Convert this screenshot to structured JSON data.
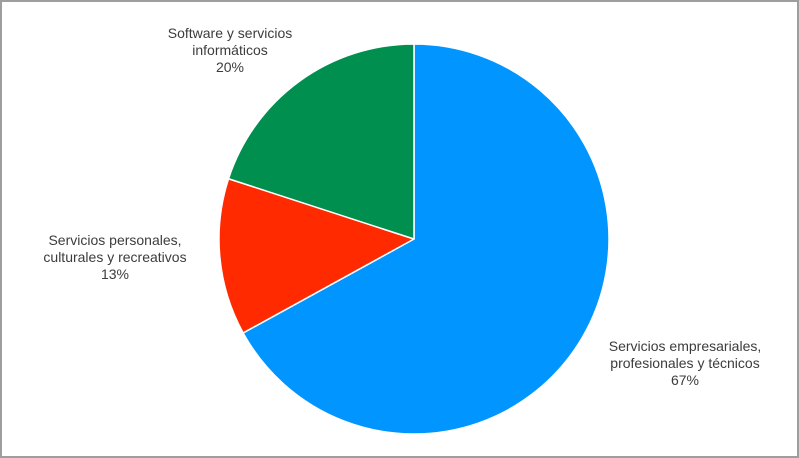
{
  "chart_data": {
    "type": "pie",
    "title": "",
    "start_angle_deg": 0,
    "direction": "clockwise",
    "legend": "none",
    "slices": [
      {
        "label_lines": [
          "Servicios empresariales,",
          "profesionales y técnicos"
        ],
        "value": 67,
        "percent_label": "67%",
        "color": "#0095ff"
      },
      {
        "label_lines": [
          "Servicios personales,",
          "culturales y recreativos"
        ],
        "value": 13,
        "percent_label": "13%",
        "color": "#ff2a00"
      },
      {
        "label_lines": [
          "Software y servicios",
          "informáticos"
        ],
        "value": 20,
        "percent_label": "20%",
        "color": "#008f4f"
      }
    ]
  }
}
